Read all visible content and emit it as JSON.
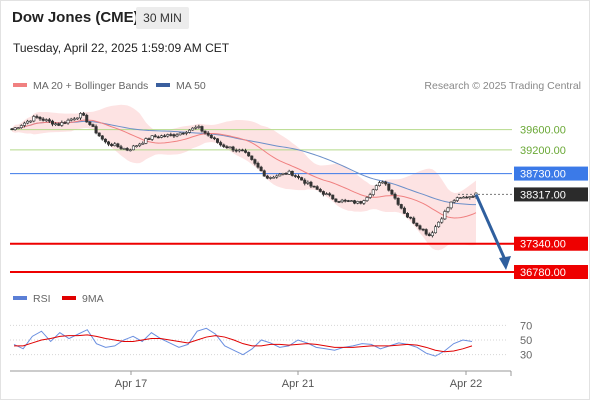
{
  "header": {
    "title": "Dow Jones (CME)",
    "interval": "30 MIN",
    "datetime": "Tuesday, April 22, 2025 1:59:09 AM CET"
  },
  "legend": {
    "ma20": "MA 20 + Bollinger Bands",
    "ma50": "MA 50",
    "credit": "Research © 2025 Trading Central"
  },
  "rsi_legend": {
    "rsi": "RSI",
    "ma": "9MA"
  },
  "colors": {
    "candle": "#333333",
    "bollinger_fill": "#fde3e3",
    "ma20": "#f08080",
    "ma50": "#6b8fc9",
    "support": "#ee0000",
    "resistance": "#b4d98a",
    "pivot": "#3b7ae8",
    "arrow": "#2f5f9e"
  },
  "chart_data": [
    {
      "type": "candlestick",
      "title": "Dow Jones (CME)",
      "timeframe": "30 MIN",
      "x_ticks": [
        "Apr 17",
        "Apr 21",
        "Apr 22"
      ],
      "ylim": [
        36500,
        40100
      ],
      "series": [
        {
          "name": "MA 20 + Bollinger Bands"
        },
        {
          "name": "MA 50"
        }
      ],
      "close_path": [
        39600,
        39850,
        39700,
        39900,
        39350,
        39200,
        39450,
        39500,
        39650,
        39300,
        39150,
        38650,
        38750,
        38450,
        38200,
        38150,
        38600,
        37900,
        37500,
        38200,
        38317
      ],
      "levels": [
        {
          "label": "39600.00",
          "value": 39600,
          "kind": "resistance"
        },
        {
          "label": "39200.00",
          "value": 39200,
          "kind": "resistance"
        },
        {
          "label": "38730.00",
          "value": 38730,
          "kind": "pivot"
        },
        {
          "label": "38317.00",
          "value": 38317,
          "kind": "last"
        },
        {
          "label": "37340.00",
          "value": 37340,
          "kind": "support"
        },
        {
          "label": "36780.00",
          "value": 36780,
          "kind": "support"
        }
      ],
      "projection": {
        "from": 38317,
        "to": 36780,
        "direction": "down"
      }
    },
    {
      "type": "line",
      "title": "RSI",
      "series": [
        {
          "name": "RSI",
          "values": [
            44,
            38,
            55,
            62,
            48,
            60,
            52,
            58,
            64,
            45,
            40,
            42,
            50,
            55,
            48,
            60,
            52,
            46,
            40,
            44,
            62,
            66,
            58,
            42,
            36,
            30,
            38,
            50,
            46,
            40,
            42,
            50,
            46,
            40,
            38,
            36,
            40,
            42,
            45,
            44,
            38,
            42,
            46,
            44,
            40,
            32,
            28,
            35,
            45,
            50,
            48
          ]
        },
        {
          "name": "9MA",
          "values": [
            42,
            42,
            46,
            50,
            52,
            55,
            56,
            56,
            57,
            55,
            52,
            50,
            48,
            48,
            50,
            52,
            52,
            50,
            48,
            46,
            50,
            54,
            56,
            54,
            50,
            45,
            42,
            42,
            44,
            44,
            43,
            44,
            45,
            44,
            42,
            40,
            40,
            40,
            41,
            42,
            42,
            42,
            43,
            44,
            43,
            40,
            36,
            34,
            35,
            38,
            42
          ]
        }
      ],
      "y_ticks": [
        "70",
        "50",
        "30"
      ],
      "ylim": [
        0,
        100
      ]
    }
  ]
}
